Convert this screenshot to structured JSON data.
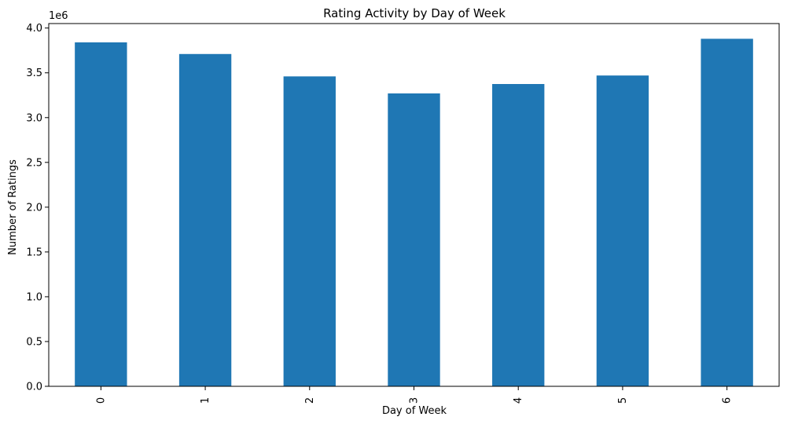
{
  "chart_data": {
    "type": "bar",
    "title": "Rating Activity by Day of Week",
    "xlabel": "Day of Week",
    "ylabel": "Number of Ratings",
    "y_multiplier_label": "1e6",
    "categories": [
      "0",
      "1",
      "2",
      "3",
      "4",
      "5",
      "6"
    ],
    "values": [
      3840000,
      3710000,
      3460000,
      3270000,
      3375000,
      3470000,
      3880000
    ],
    "ylim": [
      0,
      4050000
    ],
    "yticks": [
      0,
      500000,
      1000000,
      1500000,
      2000000,
      2500000,
      3000000,
      3500000,
      4000000
    ],
    "ytick_labels": [
      "0.0",
      "0.5",
      "1.0",
      "1.5",
      "2.0",
      "2.5",
      "3.0",
      "3.5",
      "4.0"
    ],
    "bar_color": "#1f77b4",
    "grid": false,
    "legend": "none"
  }
}
